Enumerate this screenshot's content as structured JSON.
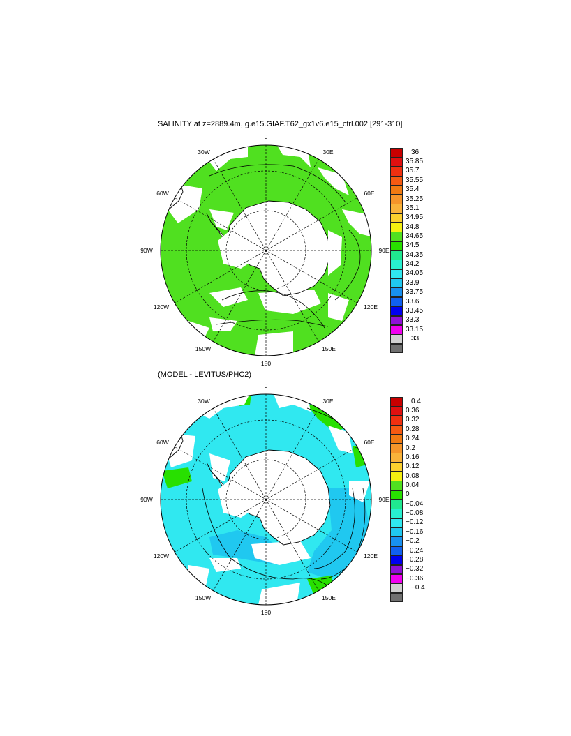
{
  "figure": {
    "title_top": "SALINITY at z=2889.4m, g.e15.GIAF.T62_gx1v6.e15_ctrl.002 [291-310]",
    "title_bottom": "(MODEL - LEVITUS/PHC2)"
  },
  "map_labels": {
    "lon_0": "0",
    "lon_30e": "30E",
    "lon_60e": "60E",
    "lon_90e": "90E",
    "lon_120e": "120E",
    "lon_150e": "150E",
    "lon_180": "180",
    "lon_150w": "150W",
    "lon_120w": "120W",
    "lon_90w": "90W",
    "lon_60w": "60W",
    "lon_30w": "30W"
  },
  "colorbars": {
    "top": {
      "labels": [
        "36",
        "35.85",
        "35.7",
        "35.55",
        "35.4",
        "35.25",
        "35.1",
        "34.95",
        "34.8",
        "34.65",
        "34.5",
        "34.35",
        "34.2",
        "34.05",
        "33.9",
        "33.75",
        "33.6",
        "33.45",
        "33.3",
        "33.15",
        "33"
      ],
      "colors": [
        "#c80000",
        "#e01010",
        "#f03010",
        "#f55a12",
        "#f07a12",
        "#f5952a",
        "#f9b33a",
        "#fbd02e",
        "#f5f010",
        "#50e020",
        "#28e000",
        "#20e890",
        "#28f0d0",
        "#30e8f0",
        "#20c8f0",
        "#1890f0",
        "#1060f0",
        "#0000f0",
        "#9010d8",
        "#f000f0",
        "#d0d0d0",
        "#707070"
      ]
    },
    "bottom": {
      "labels": [
        "0.4",
        "0.36",
        "0.32",
        "0.28",
        "0.24",
        "0.2",
        "0.16",
        "0.12",
        "0.08",
        "0.04",
        "0",
        "−0.04",
        "−0.08",
        "−0.12",
        "−0.16",
        "−0.2",
        "−0.24",
        "−0.28",
        "−0.32",
        "−0.36",
        "−0.4"
      ],
      "colors": [
        "#c80000",
        "#e01010",
        "#f03010",
        "#f55a12",
        "#f07a12",
        "#f5952a",
        "#f9b33a",
        "#fbd02e",
        "#f5f010",
        "#50e020",
        "#28e000",
        "#20e890",
        "#28f0d0",
        "#30e8f0",
        "#20c8f0",
        "#1890f0",
        "#1060f0",
        "#0000f0",
        "#9010d8",
        "#f000f0",
        "#d0d0d0",
        "#707070"
      ]
    }
  },
  "map_fields": {
    "top_dominant_color": "#50e020",
    "bottom_dominant_color": "#30e8f0",
    "bottom_secondary_color": "#20c8f0"
  }
}
